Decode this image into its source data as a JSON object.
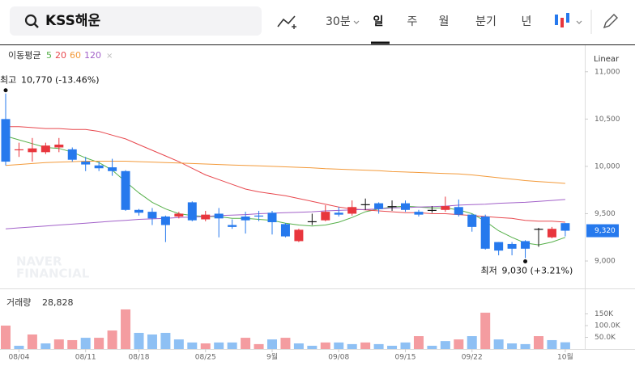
{
  "toolbar": {
    "search": "KSS해운",
    "interval": "30분",
    "periods": [
      "일",
      "주",
      "월",
      "분기",
      "년"
    ],
    "scale": "Linear"
  },
  "chart_data": [
    {
      "type": "candlestick",
      "categories": [
        null,
        "08/04",
        null,
        null,
        null,
        null,
        "08/11",
        null,
        null,
        null,
        "08/18",
        null,
        null,
        null,
        null,
        "08/25",
        null,
        null,
        null,
        null,
        "9월",
        null,
        null,
        null,
        null,
        "09/08",
        null,
        null,
        null,
        null,
        "09/15",
        null,
        null,
        null,
        null,
        "09/22",
        null,
        null,
        null,
        null,
        null,
        null,
        "10월"
      ],
      "open": [
        10500,
        10170,
        10150,
        10150,
        10200,
        10180,
        10050,
        10010,
        9990,
        9950,
        9540,
        9520,
        9470,
        9470,
        9620,
        9440,
        9500,
        9380,
        9470,
        9480,
        9510,
        9390,
        9210,
        9420,
        9430,
        9510,
        9500,
        9600,
        9610,
        9580,
        9610,
        9520,
        9540,
        9540,
        9570,
        9490,
        9470,
        9200,
        9180,
        9210,
        9340,
        9250,
        9400
      ],
      "high": [
        10770,
        10250,
        10300,
        10250,
        10300,
        10200,
        10100,
        10050,
        10080,
        9960,
        9550,
        9560,
        9480,
        9520,
        9630,
        9530,
        9560,
        9440,
        9520,
        9530,
        9530,
        9400,
        9340,
        9500,
        9590,
        9570,
        9640,
        9660,
        9620,
        9640,
        9640,
        9540,
        9580,
        9680,
        9650,
        9500,
        9490,
        9200,
        9200,
        9220,
        9350,
        9360,
        9400
      ],
      "low": [
        10010,
        10100,
        10050,
        10130,
        10150,
        10050,
        9950,
        9950,
        9900,
        9530,
        9480,
        9380,
        9200,
        9450,
        9420,
        9420,
        9250,
        9340,
        9290,
        9420,
        9280,
        9250,
        9200,
        9380,
        9420,
        9470,
        9480,
        9540,
        9500,
        9530,
        9520,
        9470,
        9510,
        9520,
        9470,
        9310,
        9120,
        9060,
        9060,
        9030,
        9150,
        9240,
        9260
      ],
      "close": [
        10050,
        10180,
        10190,
        10220,
        10230,
        10070,
        10020,
        9980,
        9950,
        9540,
        9510,
        9450,
        9380,
        9500,
        9430,
        9490,
        9450,
        9360,
        9430,
        9470,
        9410,
        9260,
        9330,
        9420,
        9520,
        9490,
        9570,
        9600,
        9550,
        9580,
        9540,
        9490,
        9540,
        9580,
        9490,
        9360,
        9130,
        9110,
        9130,
        9130,
        9340,
        9340,
        9320
      ],
      "up_color": "#e8363d",
      "down_color": "#2679ed",
      "flat_color": "#111111",
      "legend_title": "이동평균",
      "series": [
        {
          "name": "5",
          "color": "#56b04a",
          "values": [
            10320,
            10280,
            10240,
            10200,
            10190,
            10150,
            10090,
            10040,
            9960,
            9840,
            9720,
            9620,
            9550,
            9500,
            9480,
            9470,
            9470,
            9450,
            9450,
            9440,
            9430,
            9400,
            9380,
            9370,
            9380,
            9410,
            9460,
            9520,
            9550,
            9570,
            9580,
            9570,
            9560,
            9560,
            9540,
            9500,
            9420,
            9320,
            9250,
            9190,
            9170,
            9200,
            9250
          ]
        },
        {
          "name": "20",
          "color": "#e8484e",
          "values": [
            10420,
            10420,
            10410,
            10400,
            10400,
            10390,
            10390,
            10370,
            10330,
            10290,
            10230,
            10170,
            10110,
            10050,
            9980,
            9910,
            9860,
            9810,
            9760,
            9730,
            9710,
            9690,
            9660,
            9630,
            9600,
            9570,
            9550,
            9540,
            9530,
            9520,
            9510,
            9510,
            9500,
            9500,
            9490,
            9480,
            9470,
            9460,
            9450,
            9430,
            9420,
            9420,
            9410
          ]
        },
        {
          "name": "60",
          "color": "#f39a3a",
          "values": [
            10010,
            10020,
            10030,
            10040,
            10045,
            10050,
            10055,
            10055,
            10055,
            10055,
            10050,
            10045,
            10040,
            10035,
            10030,
            10025,
            10020,
            10015,
            10010,
            10005,
            10000,
            9995,
            9990,
            9985,
            9975,
            9970,
            9965,
            9960,
            9955,
            9945,
            9940,
            9935,
            9930,
            9925,
            9920,
            9910,
            9895,
            9880,
            9865,
            9850,
            9840,
            9830,
            9820
          ]
        },
        {
          "name": "120",
          "color": "#a261c9",
          "values": [
            9340,
            9350,
            9360,
            9370,
            9380,
            9390,
            9400,
            9410,
            9420,
            9430,
            9440,
            9445,
            9450,
            9460,
            9465,
            9470,
            9480,
            9485,
            9490,
            9500,
            9505,
            9510,
            9515,
            9520,
            9530,
            9535,
            9540,
            9545,
            9550,
            9560,
            9565,
            9570,
            9575,
            9580,
            9590,
            9595,
            9600,
            9610,
            9615,
            9620,
            9630,
            9640,
            9650
          ]
        }
      ],
      "ylim": [
        8710,
        11280
      ],
      "yticks": [
        {
          "value": 9000,
          "label": "9,000"
        },
        {
          "value": 9500,
          "label": "9,500"
        },
        {
          "value": 10000,
          "label": "10,000"
        },
        {
          "value": 10500,
          "label": "10,500"
        },
        {
          "value": 11000,
          "label": "11,000"
        }
      ],
      "last_label": "9,320",
      "annotations": [
        {
          "label": "최고",
          "text": "10,770 (-13.46%)",
          "value": 10770
        },
        {
          "label": "최저",
          "text": "9,030 (+3.21%)",
          "value": 9030
        }
      ],
      "watermark": [
        "NAVER",
        "FINANCIAL"
      ]
    },
    {
      "type": "bar",
      "title": "거래량",
      "legend_value": "28,828",
      "values": [
        100000,
        14000,
        62000,
        24000,
        41000,
        38000,
        48000,
        48000,
        79000,
        169000,
        69000,
        62000,
        69000,
        41000,
        28000,
        24000,
        28000,
        28000,
        48000,
        21000,
        41000,
        48000,
        24000,
        14000,
        28000,
        28000,
        21000,
        28000,
        21000,
        14000,
        28000,
        55000,
        14000,
        34000,
        41000,
        55000,
        155000,
        41000,
        24000,
        21000,
        55000,
        38000,
        28828
      ],
      "colors": [
        "#f49ca0",
        "#8ec0f4",
        "#f49ca0",
        "#8ec0f4",
        "#f49ca0",
        "#f49ca0",
        "#8ec0f4",
        "#f49ca0",
        "#f49ca0",
        "#f49ca0",
        "#8ec0f4",
        "#8ec0f4",
        "#8ec0f4",
        "#8ec0f4",
        "#8ec0f4",
        "#f49ca0",
        "#8ec0f4",
        "#8ec0f4",
        "#f49ca0",
        "#f49ca0",
        "#8ec0f4",
        "#f49ca0",
        "#8ec0f4",
        "#8ec0f4",
        "#f49ca0",
        "#8ec0f4",
        "#8ec0f4",
        "#f49ca0",
        "#8ec0f4",
        "#8ec0f4",
        "#8ec0f4",
        "#f49ca0",
        "#8ec0f4",
        "#8ec0f4",
        "#f49ca0",
        "#8ec0f4",
        "#f49ca0",
        "#8ec0f4",
        "#8ec0f4",
        "#8ec0f4",
        "#f49ca0",
        "#8ec0f4",
        "#8ec0f4"
      ],
      "ylim": [
        0,
        255000
      ],
      "yticks": [
        {
          "value": 50000,
          "label": "50.0K"
        },
        {
          "value": 100000,
          "label": "100.0K"
        },
        {
          "value": 150000,
          "label": "150K"
        }
      ]
    }
  ]
}
